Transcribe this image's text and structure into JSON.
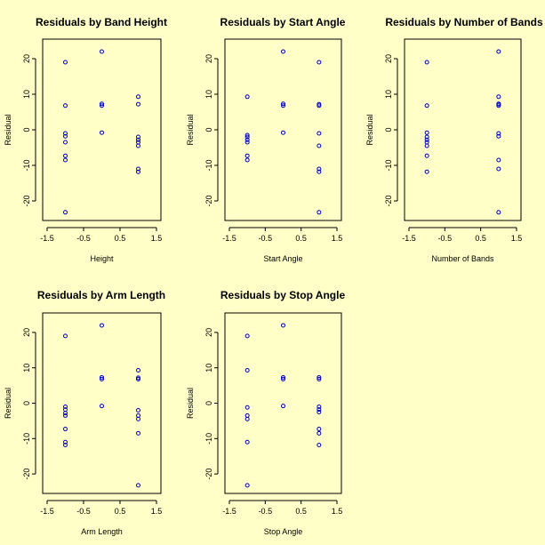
{
  "chart_data": [
    {
      "type": "scatter",
      "title": "Residuals by Band Height",
      "xlabel": "Height",
      "ylabel": "Residual",
      "xlim": [
        -1.5,
        1.5
      ],
      "ylim": [
        -25,
        25
      ],
      "xticks": [
        "-1.5",
        "-0.5",
        "0.5",
        "1.5"
      ],
      "yticks": [
        "20",
        "10",
        "0",
        "-10",
        "-20"
      ],
      "point_color": "#0000cc",
      "points": [
        [
          -1,
          19
        ],
        [
          -1,
          6.8
        ],
        [
          -1,
          -1
        ],
        [
          -1,
          -1.8
        ],
        [
          -1,
          -3.5
        ],
        [
          -1,
          -7.3
        ],
        [
          -1,
          -8.5
        ],
        [
          -1,
          -23.2
        ],
        [
          0,
          22
        ],
        [
          0,
          7.3
        ],
        [
          0,
          6.8
        ],
        [
          0,
          -0.8
        ],
        [
          1,
          9.3
        ],
        [
          1,
          7.2
        ],
        [
          1,
          -2
        ],
        [
          1,
          -2.8
        ],
        [
          1,
          -3.5
        ],
        [
          1,
          -4.5
        ],
        [
          1,
          -11
        ],
        [
          1,
          -11.8
        ]
      ]
    },
    {
      "type": "scatter",
      "title": "Residuals by Start Angle",
      "xlabel": "Start Angle",
      "ylabel": "Residual",
      "xlim": [
        -1.5,
        1.5
      ],
      "ylim": [
        -25,
        25
      ],
      "xticks": [
        "-1.5",
        "-0.5",
        "0.5",
        "1.5"
      ],
      "yticks": [
        "20",
        "10",
        "0",
        "-10",
        "-20"
      ],
      "point_color": "#0000cc",
      "points": [
        [
          -1,
          9.3
        ],
        [
          -1,
          -1.5
        ],
        [
          -1,
          -2
        ],
        [
          -1,
          -2.8
        ],
        [
          -1,
          -3.5
        ],
        [
          -1,
          -7.3
        ],
        [
          -1,
          -8.5
        ],
        [
          0,
          22
        ],
        [
          0,
          7.3
        ],
        [
          0,
          6.8
        ],
        [
          0,
          -0.8
        ],
        [
          1,
          19
        ],
        [
          1,
          7.2
        ],
        [
          1,
          6.8
        ],
        [
          1,
          -1
        ],
        [
          1,
          -4.5
        ],
        [
          1,
          -11
        ],
        [
          1,
          -11.8
        ],
        [
          1,
          -23.2
        ]
      ]
    },
    {
      "type": "scatter",
      "title": "Residuals by Number of Bands",
      "xlabel": "Number of Bands",
      "ylabel": "Residual",
      "xlim": [
        -1.5,
        1.5
      ],
      "ylim": [
        -25,
        25
      ],
      "xticks": [
        "-1.5",
        "-0.5",
        "0.5",
        "1.5"
      ],
      "yticks": [
        "20",
        "10",
        "0",
        "-10",
        "-20"
      ],
      "point_color": "#0000cc",
      "points": [
        [
          -1,
          19
        ],
        [
          -1,
          6.8
        ],
        [
          -1,
          -0.8
        ],
        [
          -1,
          -2
        ],
        [
          -1,
          -2.8
        ],
        [
          -1,
          -3.5
        ],
        [
          -1,
          -4.5
        ],
        [
          -1,
          -7.3
        ],
        [
          -1,
          -11.8
        ],
        [
          1,
          22
        ],
        [
          1,
          9.3
        ],
        [
          1,
          7.3
        ],
        [
          1,
          7.2
        ],
        [
          1,
          6.8
        ],
        [
          1,
          -1
        ],
        [
          1,
          -1.8
        ],
        [
          1,
          -8.5
        ],
        [
          1,
          -11
        ],
        [
          1,
          -23.2
        ]
      ]
    },
    {
      "type": "scatter",
      "title": "Residuals by Arm Length",
      "xlabel": "Arm Length",
      "ylabel": "Residual",
      "xlim": [
        -1.5,
        1.5
      ],
      "ylim": [
        -25,
        25
      ],
      "xticks": [
        "-1.5",
        "-0.5",
        "0.5",
        "1.5"
      ],
      "yticks": [
        "20",
        "10",
        "0",
        "-10",
        "-20"
      ],
      "point_color": "#0000cc",
      "points": [
        [
          -1,
          19
        ],
        [
          -1,
          -1
        ],
        [
          -1,
          -1.8
        ],
        [
          -1,
          -2.8
        ],
        [
          -1,
          -3.5
        ],
        [
          -1,
          -7.3
        ],
        [
          -1,
          -11
        ],
        [
          -1,
          -11.8
        ],
        [
          0,
          22
        ],
        [
          0,
          7.3
        ],
        [
          0,
          6.8
        ],
        [
          0,
          -0.8
        ],
        [
          1,
          9.3
        ],
        [
          1,
          7.2
        ],
        [
          1,
          6.8
        ],
        [
          1,
          -2
        ],
        [
          1,
          -3.5
        ],
        [
          1,
          -4.5
        ],
        [
          1,
          -8.5
        ],
        [
          1,
          -23.2
        ]
      ]
    },
    {
      "type": "scatter",
      "title": "Residuals by Stop Angle",
      "xlabel": "Stop Angle",
      "ylabel": "Residual",
      "xlim": [
        -1.5,
        1.5
      ],
      "ylim": [
        -25,
        25
      ],
      "xticks": [
        "-1.5",
        "-0.5",
        "0.5",
        "1.5"
      ],
      "yticks": [
        "20",
        "10",
        "0",
        "-10",
        "-20"
      ],
      "point_color": "#0000cc",
      "points": [
        [
          -1,
          19
        ],
        [
          -1,
          9.3
        ],
        [
          -1,
          -1.2
        ],
        [
          -1,
          -3.5
        ],
        [
          -1,
          -4.5
        ],
        [
          -1,
          -11
        ],
        [
          -1,
          -23.2
        ],
        [
          0,
          22
        ],
        [
          0,
          7.3
        ],
        [
          0,
          6.8
        ],
        [
          0,
          -0.8
        ],
        [
          1,
          7.3
        ],
        [
          1,
          6.8
        ],
        [
          1,
          -1
        ],
        [
          1,
          -1.8
        ],
        [
          1,
          -2.5
        ],
        [
          1,
          -7.3
        ],
        [
          1,
          -8.5
        ],
        [
          1,
          -11.8
        ]
      ]
    }
  ]
}
